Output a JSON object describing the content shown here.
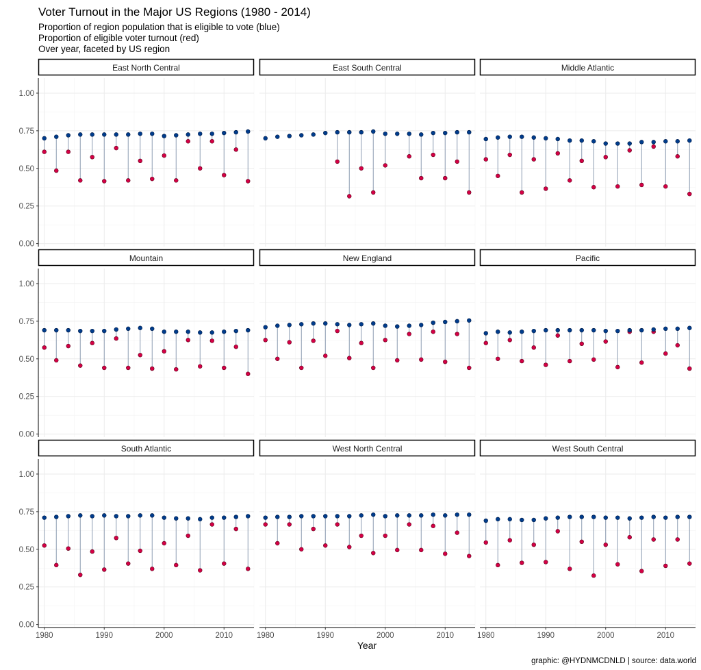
{
  "title": "Voter Turnout in the Major US Regions (1980 - 2014)",
  "subtitle_lines": [
    "Proportion of region population that is eligible to vote (blue)",
    "Proportion of eligible voter turnout (red)",
    "Over year, faceted by US region"
  ],
  "xlabel": "Year",
  "caption": "graphic: @HYDNMCDNLD | source: data.world",
  "colors": {
    "eligible": "#003c8c",
    "turnout": "#d40045",
    "segment": "#8a9ab0",
    "grid": "#ebebeb"
  },
  "chart_data": {
    "type": "scatter",
    "x_label": "Year",
    "xlim": [
      1979,
      2015
    ],
    "ylim": [
      -0.02,
      1.1
    ],
    "x_ticks": [
      1980,
      1990,
      2000,
      2010
    ],
    "y_ticks": [
      0,
      0.25,
      0.5,
      0.75,
      1.0
    ],
    "y_tick_labels": [
      "0.00",
      "0.25",
      "0.50",
      "0.75",
      "1.00"
    ],
    "years": [
      1980,
      1982,
      1984,
      1986,
      1988,
      1990,
      1992,
      1994,
      1996,
      1998,
      2000,
      2002,
      2004,
      2006,
      2008,
      2010,
      2012,
      2014
    ],
    "grid": true,
    "facets": [
      {
        "name": "East North Central",
        "eligible": [
          0.7,
          0.71,
          0.72,
          0.725,
          0.725,
          0.725,
          0.725,
          0.725,
          0.73,
          0.73,
          0.715,
          0.72,
          0.725,
          0.73,
          0.73,
          0.735,
          0.74,
          0.745
        ],
        "turnout": [
          0.61,
          0.485,
          0.61,
          0.42,
          0.575,
          0.415,
          0.635,
          0.42,
          0.55,
          0.43,
          0.585,
          0.42,
          0.68,
          0.5,
          0.68,
          0.455,
          0.625,
          0.415
        ]
      },
      {
        "name": "East South Central",
        "eligible": [
          0.7,
          0.71,
          0.715,
          0.72,
          0.725,
          0.735,
          0.74,
          0.74,
          0.74,
          0.745,
          0.73,
          0.73,
          0.73,
          0.725,
          0.735,
          0.735,
          0.74,
          0.74
        ],
        "turnout": [
          null,
          null,
          null,
          null,
          null,
          null,
          0.545,
          0.315,
          0.5,
          0.34,
          0.52,
          null,
          0.58,
          0.435,
          0.59,
          0.435,
          0.545,
          0.34
        ]
      },
      {
        "name": "Middle Atlantic",
        "eligible": [
          0.695,
          0.705,
          0.71,
          0.71,
          0.705,
          0.7,
          0.695,
          0.685,
          0.685,
          0.68,
          0.665,
          0.665,
          0.665,
          0.675,
          0.675,
          0.68,
          0.68,
          0.685
        ],
        "turnout": [
          0.56,
          0.45,
          0.59,
          0.34,
          0.56,
          0.365,
          0.6,
          0.42,
          0.55,
          0.375,
          0.575,
          0.38,
          0.62,
          0.39,
          0.645,
          0.38,
          0.58,
          0.33
        ]
      },
      {
        "name": "Mountain",
        "eligible": [
          0.69,
          0.69,
          0.69,
          0.685,
          0.685,
          0.685,
          0.695,
          0.7,
          0.705,
          0.7,
          0.68,
          0.68,
          0.68,
          0.675,
          0.675,
          0.68,
          0.685,
          0.69
        ],
        "turnout": [
          0.575,
          0.49,
          0.585,
          0.455,
          0.605,
          0.44,
          0.635,
          0.44,
          0.525,
          0.435,
          0.55,
          0.43,
          0.625,
          0.45,
          0.62,
          0.44,
          0.58,
          0.4
        ]
      },
      {
        "name": "New England",
        "eligible": [
          0.71,
          0.72,
          0.725,
          0.73,
          0.735,
          0.735,
          0.73,
          0.725,
          0.73,
          0.735,
          0.72,
          0.715,
          0.72,
          0.725,
          0.74,
          0.745,
          0.75,
          0.755
        ],
        "turnout": [
          0.625,
          0.5,
          0.61,
          0.44,
          0.62,
          0.52,
          0.685,
          0.505,
          0.605,
          0.44,
          0.625,
          0.49,
          0.665,
          0.495,
          0.68,
          0.48,
          0.665,
          0.44
        ]
      },
      {
        "name": "Pacific",
        "eligible": [
          0.67,
          0.68,
          0.675,
          0.68,
          0.685,
          0.69,
          0.69,
          0.69,
          0.69,
          0.69,
          0.685,
          0.685,
          0.69,
          0.69,
          0.695,
          0.7,
          0.7,
          0.705
        ],
        "turnout": [
          0.605,
          0.5,
          0.625,
          0.485,
          0.575,
          0.46,
          0.655,
          0.485,
          0.6,
          0.495,
          0.615,
          0.445,
          0.68,
          0.475,
          0.68,
          0.535,
          0.59,
          0.435
        ]
      },
      {
        "name": "South Atlantic",
        "eligible": [
          0.71,
          0.715,
          0.72,
          0.725,
          0.72,
          0.725,
          0.72,
          0.72,
          0.725,
          0.725,
          0.71,
          0.705,
          0.705,
          0.7,
          0.71,
          0.71,
          0.715,
          0.72
        ],
        "turnout": [
          0.525,
          0.395,
          0.505,
          0.33,
          0.485,
          0.365,
          0.575,
          0.405,
          0.49,
          0.37,
          0.54,
          0.395,
          0.59,
          0.36,
          0.665,
          0.405,
          0.635,
          0.37
        ]
      },
      {
        "name": "West North Central",
        "eligible": [
          0.71,
          0.715,
          0.715,
          0.72,
          0.72,
          0.72,
          0.72,
          0.72,
          0.725,
          0.73,
          0.72,
          0.725,
          0.725,
          0.725,
          0.73,
          0.725,
          0.73,
          0.73
        ],
        "turnout": [
          0.665,
          0.54,
          0.665,
          0.5,
          0.635,
          0.525,
          0.665,
          0.515,
          0.59,
          0.475,
          0.59,
          0.495,
          0.665,
          0.495,
          0.655,
          0.47,
          0.61,
          0.455
        ]
      },
      {
        "name": "West South Central",
        "eligible": [
          0.69,
          0.7,
          0.7,
          0.695,
          0.695,
          0.705,
          0.71,
          0.715,
          0.715,
          0.715,
          0.71,
          0.71,
          0.705,
          0.71,
          0.715,
          0.71,
          0.715,
          0.715
        ],
        "turnout": [
          0.545,
          0.395,
          0.56,
          0.41,
          0.53,
          0.415,
          0.62,
          0.37,
          0.55,
          0.325,
          0.53,
          0.4,
          0.58,
          0.355,
          0.565,
          0.39,
          0.565,
          0.405
        ]
      }
    ]
  }
}
